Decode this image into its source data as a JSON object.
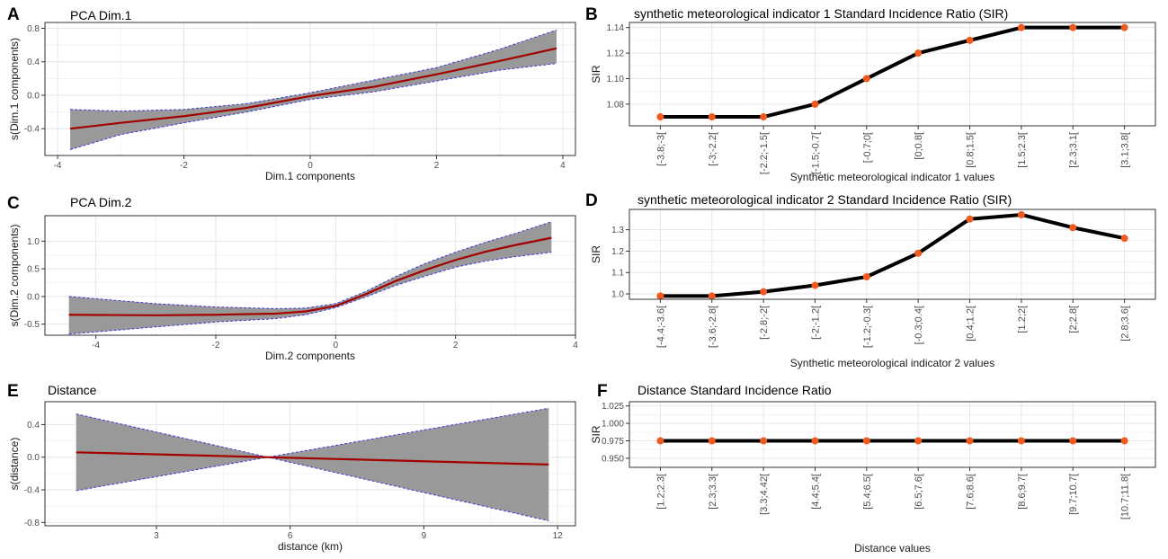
{
  "chart_data": [
    {
      "id": "A",
      "panel_label": "A",
      "type": "area",
      "title": "PCA Dim.1",
      "xlabel": "Dim.1 components",
      "ylabel": "s(Dim.1 components)",
      "xlim": [
        -4.2,
        4.2
      ],
      "ylim": [
        -0.72,
        0.87
      ],
      "xticks": [
        -4,
        -2,
        0,
        2,
        4
      ],
      "yticks": [
        -0.4,
        0.0,
        0.4,
        0.8
      ],
      "ytick_labels": [
        "-0.4",
        "0.0",
        "0.4",
        "0.8"
      ],
      "x": [
        -3.8,
        -3.0,
        -2.0,
        -1.0,
        0.0,
        1.0,
        2.0,
        3.0,
        3.9
      ],
      "fit": [
        -0.4,
        -0.33,
        -0.25,
        -0.15,
        -0.01,
        0.1,
        0.25,
        0.41,
        0.56
      ],
      "lower": [
        -0.65,
        -0.47,
        -0.33,
        -0.2,
        -0.05,
        0.04,
        0.17,
        0.3,
        0.38
      ],
      "upper": [
        -0.17,
        -0.19,
        -0.17,
        -0.1,
        0.03,
        0.18,
        0.33,
        0.55,
        0.78
      ]
    },
    {
      "id": "B",
      "panel_label": "B",
      "type": "line",
      "title": "synthetic meteorological indicator 1 Standard Incidence Ratio (SIR)",
      "xlabel": "Synthetic meteorological indicator 1 values",
      "ylabel": "SIR",
      "ylim": [
        1.063,
        1.144
      ],
      "yticks": [
        1.08,
        1.1,
        1.12,
        1.14
      ],
      "ytick_labels": [
        "1.08",
        "1.10",
        "1.12",
        "1.14"
      ],
      "categories": [
        "[-3.8;-3[",
        "[-3;-2.2[",
        "[-2.2;-1.5[",
        "[-1.5;-0.7[",
        "[-0.7;0[",
        "[0;0.8[",
        "[0.8;1.5[",
        "[1.5;2.3[",
        "[2.3;3.1[",
        "[3.1;3.8["
      ],
      "values": [
        1.07,
        1.07,
        1.07,
        1.08,
        1.1,
        1.12,
        1.13,
        1.14,
        1.14,
        1.14
      ]
    },
    {
      "id": "C",
      "panel_label": "C",
      "type": "area",
      "title": "PCA Dim.2",
      "xlabel": "Dim.2 components",
      "ylabel": "s(Dim.2 components)",
      "xlim": [
        -4.85,
        4.0
      ],
      "ylim": [
        -0.7,
        1.46
      ],
      "xticks": [
        -4,
        -2,
        0,
        2,
        4
      ],
      "yticks": [
        -0.5,
        0.0,
        0.5,
        1.0
      ],
      "ytick_labels": [
        "-0.5",
        "0.0",
        "0.5",
        "1.0"
      ],
      "x": [
        -4.45,
        -3.0,
        -2.0,
        -1.0,
        -0.5,
        0.0,
        0.5,
        1.0,
        1.5,
        2.0,
        2.5,
        3.0,
        3.6
      ],
      "fit": [
        -0.33,
        -0.34,
        -0.33,
        -0.31,
        -0.27,
        -0.17,
        0.04,
        0.28,
        0.48,
        0.66,
        0.81,
        0.93,
        1.06
      ],
      "lower": [
        -0.68,
        -0.55,
        -0.46,
        -0.4,
        -0.33,
        -0.2,
        -0.01,
        0.2,
        0.37,
        0.53,
        0.64,
        0.72,
        0.8
      ],
      "upper": [
        0.0,
        -0.13,
        -0.19,
        -0.22,
        -0.21,
        -0.13,
        0.09,
        0.36,
        0.6,
        0.8,
        0.98,
        1.14,
        1.35
      ]
    },
    {
      "id": "D",
      "panel_label": "D",
      "type": "line",
      "title": "synthetic meteorological indicator 2 Standard Incidence Ratio (SIR)",
      "xlabel": "Synthetic meteorological indicator 2 values",
      "ylabel": "SIR",
      "ylim": [
        0.975,
        1.395
      ],
      "yticks": [
        1.0,
        1.1,
        1.2,
        1.3
      ],
      "ytick_labels": [
        "1.0",
        "1.1",
        "1.2",
        "1.3"
      ],
      "categories": [
        "[-4.4;-3.6[",
        "[-3.6;-2.8[",
        "[-2.8;-2[",
        "[-2;-1.2[",
        "[-1.2;-0.3[",
        "[-0.3;0.4[",
        "[0.4;1.2[",
        "[1.2;2[",
        "[2;2.8[",
        "[2.8;3.6["
      ],
      "values": [
        0.99,
        0.99,
        1.01,
        1.04,
        1.08,
        1.19,
        1.35,
        1.37,
        1.31,
        1.26
      ]
    },
    {
      "id": "E",
      "panel_label": "E",
      "type": "area",
      "title": "Distance",
      "xlabel": "distance (km)",
      "ylabel": "s(distance)",
      "xlim": [
        0.5,
        12.4
      ],
      "ylim": [
        -0.84,
        0.68
      ],
      "xticks": [
        3,
        6,
        9,
        12
      ],
      "yticks": [
        -0.8,
        -0.4,
        0.0,
        0.4
      ],
      "ytick_labels": [
        "-0.8",
        "-0.4",
        "0.0",
        "0.4"
      ],
      "x": [
        1.2,
        5.5,
        11.8
      ],
      "fit": [
        0.06,
        0.0,
        -0.09
      ],
      "lower": [
        -0.41,
        0.0,
        -0.78
      ],
      "upper": [
        0.53,
        0.0,
        0.6
      ]
    },
    {
      "id": "F",
      "panel_label": "F",
      "type": "line",
      "title": "Distance Standard Incidence Ratio",
      "xlabel": "Distance values",
      "ylabel": "SIR",
      "ylim": [
        0.937,
        1.031
      ],
      "yticks": [
        0.95,
        0.975,
        1.0,
        1.025
      ],
      "ytick_labels": [
        "0.950",
        "0.975",
        "1.000",
        "1.025"
      ],
      "categories": [
        "[1.2;2.3[",
        "[2.3;3.3[",
        "[3.3;4.42[",
        "[4.4;5.4[",
        "[5.4;6.5[",
        "[6.5;7.6[",
        "[7.6;8.6[",
        "[8.6;9.7[",
        "[9.7;10.7[",
        "[10.7;11.8["
      ],
      "values": [
        0.975,
        0.975,
        0.975,
        0.975,
        0.975,
        0.975,
        0.975,
        0.975,
        0.975,
        0.975
      ]
    }
  ],
  "colors": {
    "band_fill": "#999999",
    "band_edge": "#3b3bd6",
    "fit_line": "#a30000",
    "sir_line": "#000000",
    "sir_point": "#f05a1e",
    "grid_major": "#e6e6e6",
    "grid_minor": "#f3f3f3",
    "panel_border": "#333333"
  }
}
